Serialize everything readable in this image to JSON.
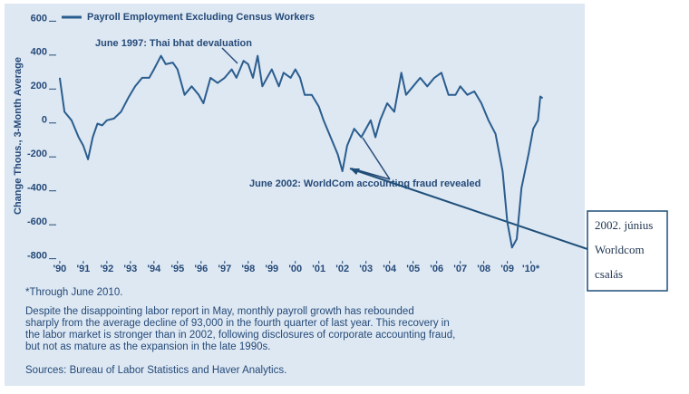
{
  "chart_data": {
    "type": "line",
    "legend_label": "Payroll Employment Excluding Census Workers",
    "ylabel": "Change Thous., 3-Month Average",
    "xlim": [
      1989.85,
      2010.9
    ],
    "ylim": [
      -850,
      650
    ],
    "yticks": [
      600,
      400,
      200,
      0,
      -200,
      -400,
      -600,
      -800
    ],
    "xticks": [
      {
        "value": 1990,
        "label": "'90"
      },
      {
        "value": 1991,
        "label": "'91"
      },
      {
        "value": 1992,
        "label": "'92"
      },
      {
        "value": 1993,
        "label": "'93"
      },
      {
        "value": 1994,
        "label": "'94"
      },
      {
        "value": 1995,
        "label": "'95"
      },
      {
        "value": 1996,
        "label": "'96"
      },
      {
        "value": 1997,
        "label": "'97"
      },
      {
        "value": 1998,
        "label": "'98"
      },
      {
        "value": 1999,
        "label": "'99"
      },
      {
        "value": 2000,
        "label": "'00"
      },
      {
        "value": 2001,
        "label": "'01"
      },
      {
        "value": 2002,
        "label": "'02"
      },
      {
        "value": 2003,
        "label": "'03"
      },
      {
        "value": 2004,
        "label": "'04"
      },
      {
        "value": 2005,
        "label": "'05"
      },
      {
        "value": 2006,
        "label": "'06"
      },
      {
        "value": 2007,
        "label": "'07"
      },
      {
        "value": 2008,
        "label": "'08"
      },
      {
        "value": 2009,
        "label": "'09"
      },
      {
        "value": 2010,
        "label": "'10*"
      }
    ],
    "grid": false,
    "series": [
      {
        "name": "Payroll Employment Excluding Census Workers",
        "color": "#2b5d8e",
        "x": [
          1990.0,
          1990.2,
          1990.5,
          1990.8,
          1991.0,
          1991.2,
          1991.4,
          1991.6,
          1991.8,
          1992.0,
          1992.3,
          1992.6,
          1992.9,
          1993.2,
          1993.5,
          1993.8,
          1994.0,
          1994.3,
          1994.5,
          1994.8,
          1995.0,
          1995.3,
          1995.6,
          1995.9,
          1996.1,
          1996.4,
          1996.7,
          1997.0,
          1997.3,
          1997.5,
          1997.8,
          1998.0,
          1998.2,
          1998.4,
          1998.6,
          1998.8,
          1999.0,
          1999.3,
          1999.5,
          1999.8,
          2000.0,
          2000.2,
          2000.4,
          2000.7,
          2001.0,
          2001.2,
          2001.5,
          2001.8,
          2002.0,
          2002.2,
          2002.5,
          2002.8,
          2003.0,
          2003.2,
          2003.4,
          2003.6,
          2003.9,
          2004.2,
          2004.5,
          2004.7,
          2005.0,
          2005.3,
          2005.6,
          2005.9,
          2006.2,
          2006.5,
          2006.8,
          2007.0,
          2007.3,
          2007.6,
          2007.9,
          2008.2,
          2008.5,
          2008.8,
          2009.0,
          2009.2,
          2009.4,
          2009.6,
          2009.9,
          2010.1,
          2010.3,
          2010.4,
          2010.5
        ],
        "values": [
          250,
          50,
          0,
          -100,
          -150,
          -230,
          -100,
          -20,
          -30,
          0,
          10,
          50,
          130,
          200,
          250,
          250,
          300,
          380,
          330,
          340,
          300,
          150,
          200,
          150,
          100,
          250,
          220,
          250,
          300,
          250,
          350,
          330,
          250,
          380,
          200,
          250,
          300,
          200,
          280,
          250,
          300,
          250,
          150,
          150,
          80,
          0,
          -100,
          -200,
          -300,
          -150,
          -50,
          -100,
          -50,
          0,
          -100,
          0,
          100,
          50,
          280,
          150,
          200,
          250,
          200,
          250,
          280,
          150,
          150,
          200,
          150,
          170,
          100,
          0,
          -80,
          -300,
          -600,
          -750,
          -700,
          -400,
          -200,
          -50,
          0,
          140,
          130
        ]
      }
    ],
    "annotations": [
      "June 1997: Thai bhat devaluation",
      "June 2002: WorldCom accounting fraud revealed"
    ],
    "callout": [
      "2002. június",
      "Worldcom",
      "csalás"
    ],
    "notes": [
      "*Through June 2010.",
      "Despite the disappointing labor report in May, monthly payroll growth has rebounded",
      "sharply from the average decline of 93,000 in the fourth quarter of last year. This recovery in",
      "the labor market is stronger than in 2002, following disclosures of corporate accounting fraud,",
      "but not as mature as the expansion in the late 1990s.",
      "Sources: Bureau of Labor Statistics and Haver Analytics."
    ]
  }
}
